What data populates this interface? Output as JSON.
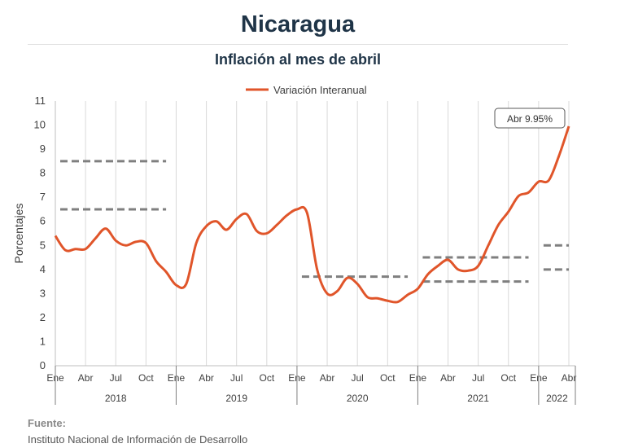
{
  "header": {
    "title": "Nicaragua",
    "subtitle": "Inflación al mes de abril"
  },
  "source": {
    "label": "Fuente:",
    "text": "Instituto Nacional de Información de  Desarrollo"
  },
  "colors": {
    "series": "#e0552a",
    "bands": "#7f7f7f",
    "grid": "#d9d9d9"
  },
  "chart_data": {
    "type": "line",
    "title": "Inflación al mes de abril",
    "ylabel": "Porcentajes",
    "ylim": [
      0,
      11
    ],
    "yticks": [
      0,
      1,
      2,
      3,
      4,
      5,
      6,
      7,
      8,
      9,
      10,
      11
    ],
    "grid": "vertical",
    "legend_position": "top",
    "x_labels": [
      "Ene",
      "Abr",
      "Jul",
      "Oct",
      "Ene",
      "Abr",
      "Jul",
      "Oct",
      "Ene",
      "Abr",
      "Jul",
      "Oct",
      "Ene",
      "Abr",
      "Jul",
      "Oct",
      "Ene",
      "Abr"
    ],
    "years": [
      "2018",
      "2019",
      "2020",
      "2021",
      "2022"
    ],
    "series": [
      {
        "name": "Variación Interanual",
        "x": [
          "2018-01",
          "2018-02",
          "2018-03",
          "2018-04",
          "2018-05",
          "2018-06",
          "2018-07",
          "2018-08",
          "2018-09",
          "2018-10",
          "2018-11",
          "2018-12",
          "2019-01",
          "2019-02",
          "2019-03",
          "2019-04",
          "2019-05",
          "2019-06",
          "2019-07",
          "2019-08",
          "2019-09",
          "2019-10",
          "2019-11",
          "2019-12",
          "2020-01",
          "2020-02",
          "2020-03",
          "2020-04",
          "2020-05",
          "2020-06",
          "2020-07",
          "2020-08",
          "2020-09",
          "2020-10",
          "2020-11",
          "2020-12",
          "2021-01",
          "2021-02",
          "2021-03",
          "2021-04",
          "2021-05",
          "2021-06",
          "2021-07",
          "2021-08",
          "2021-09",
          "2021-10",
          "2021-11",
          "2021-12",
          "2022-01",
          "2022-02",
          "2022-03",
          "2022-04"
        ],
        "values": [
          5.4,
          4.8,
          4.85,
          4.85,
          5.3,
          5.7,
          5.2,
          5.0,
          5.15,
          5.1,
          4.35,
          3.9,
          3.35,
          3.4,
          5.1,
          5.8,
          6.0,
          5.65,
          6.1,
          6.3,
          5.6,
          5.5,
          5.85,
          6.25,
          6.5,
          6.35,
          4.0,
          3.0,
          3.1,
          3.65,
          3.4,
          2.85,
          2.8,
          2.7,
          2.65,
          2.95,
          3.2,
          3.8,
          4.15,
          4.4,
          4.0,
          3.95,
          4.15,
          5.0,
          5.85,
          6.4,
          7.05,
          7.2,
          7.65,
          7.7,
          8.7,
          9.95
        ]
      }
    ],
    "reference_bands": [
      {
        "from": "2018-01",
        "to": "2018-12",
        "lower": 6.5,
        "upper": 8.5
      },
      {
        "from": "2020-01",
        "to": "2020-12",
        "lower": 3.7,
        "upper": 3.7
      },
      {
        "from": "2021-01",
        "to": "2021-12",
        "lower": 3.5,
        "upper": 4.5
      },
      {
        "from": "2022-01",
        "to": "2022-04",
        "lower": 4.0,
        "upper": 5.0
      }
    ],
    "annotation": {
      "x": "2022-04",
      "text": "Abr 9.95%"
    }
  }
}
